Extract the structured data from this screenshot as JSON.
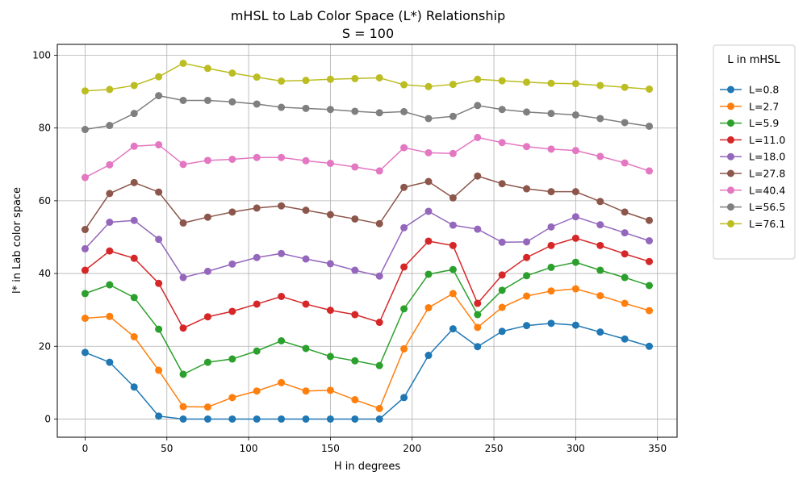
{
  "chart_data": {
    "type": "line",
    "title": "mHSL to Lab Color Space (L*) Relationship",
    "subtitle": "S = 100",
    "xlabel": "H in degrees",
    "ylabel": "l* in Lab color space",
    "xlim": [
      -17,
      362
    ],
    "ylim": [
      -5,
      103
    ],
    "x_ticks": [
      0,
      50,
      100,
      150,
      200,
      250,
      300,
      350
    ],
    "y_ticks": [
      0,
      20,
      40,
      60,
      80,
      100
    ],
    "grid": true,
    "legend_title": "L in mHSL",
    "legend_position": "outside-right",
    "x": [
      0,
      15,
      30,
      45,
      60,
      75,
      90,
      105,
      120,
      135,
      150,
      165,
      180,
      195,
      210,
      225,
      240,
      255,
      270,
      285,
      300,
      315,
      330,
      345
    ],
    "series": [
      {
        "name": "L=0.8",
        "color": "#1f77b4",
        "values": [
          18.3,
          15.6,
          8.8,
          0.8,
          0,
          0,
          0,
          0,
          0,
          0,
          0,
          0,
          0,
          5.9,
          17.5,
          24.8,
          19.9,
          24.1,
          25.7,
          26.3,
          25.8,
          23.9,
          22.0,
          20.0
        ]
      },
      {
        "name": "L=2.7",
        "color": "#ff7f0e",
        "values": [
          27.7,
          28.2,
          22.6,
          13.4,
          3.4,
          3.3,
          5.9,
          7.7,
          10.0,
          7.7,
          7.9,
          5.3,
          2.9,
          19.3,
          30.6,
          34.5,
          25.2,
          30.7,
          33.8,
          35.2,
          35.8,
          33.9,
          31.8,
          29.8
        ]
      },
      {
        "name": "L=5.9",
        "color": "#2ca02c",
        "values": [
          34.5,
          36.9,
          33.4,
          24.7,
          12.3,
          15.6,
          16.5,
          18.7,
          21.5,
          19.4,
          17.2,
          16.0,
          14.7,
          30.3,
          39.8,
          41.1,
          28.7,
          35.4,
          39.4,
          41.7,
          43.1,
          40.9,
          38.9,
          36.7
        ]
      },
      {
        "name": "L=11.0",
        "color": "#d62728",
        "values": [
          40.9,
          46.2,
          44.2,
          37.3,
          25.0,
          28.1,
          29.6,
          31.6,
          33.7,
          31.6,
          29.9,
          28.7,
          26.6,
          41.8,
          48.9,
          47.7,
          31.8,
          39.6,
          44.4,
          47.7,
          49.7,
          47.7,
          45.4,
          43.3
        ]
      },
      {
        "name": "L=18.0",
        "color": "#9467bd",
        "values": [
          46.8,
          54.1,
          54.6,
          49.4,
          38.9,
          40.6,
          42.6,
          44.4,
          45.5,
          44.0,
          42.7,
          40.9,
          39.3,
          52.6,
          57.1,
          53.3,
          52.2,
          48.6,
          48.7,
          52.8,
          55.6,
          53.4,
          51.2,
          49.0
        ]
      },
      {
        "name": "L=27.8",
        "color": "#8c564b",
        "values": [
          52.1,
          62.0,
          65.0,
          62.4,
          53.9,
          55.5,
          56.9,
          58.0,
          58.6,
          57.4,
          56.2,
          55.0,
          53.7,
          63.7,
          65.3,
          60.8,
          66.8,
          64.7,
          63.3,
          62.5,
          62.5,
          59.8,
          56.9,
          54.6
        ]
      },
      {
        "name": "L=40.4",
        "color": "#e377c2",
        "values": [
          66.4,
          69.9,
          75.0,
          75.4,
          70.0,
          71.1,
          71.4,
          71.9,
          71.9,
          71.0,
          70.3,
          69.3,
          68.2,
          74.6,
          73.2,
          73.0,
          77.4,
          76.0,
          74.9,
          74.2,
          73.8,
          72.2,
          70.4,
          68.2
        ]
      },
      {
        "name": "L=56.5",
        "color": "#7f7f7f",
        "values": [
          79.6,
          80.7,
          84.0,
          88.9,
          87.6,
          87.6,
          87.2,
          86.6,
          85.7,
          85.4,
          85.1,
          84.6,
          84.2,
          84.5,
          82.6,
          83.2,
          86.2,
          85.1,
          84.4,
          84.0,
          83.6,
          82.6,
          81.5,
          80.5
        ]
      },
      {
        "name": "L=76.1",
        "color": "#bcbd22",
        "values": [
          90.2,
          90.6,
          91.7,
          94.1,
          97.8,
          96.4,
          95.1,
          94.0,
          92.9,
          93.1,
          93.4,
          93.6,
          93.8,
          91.9,
          91.4,
          92.0,
          93.4,
          93.0,
          92.6,
          92.3,
          92.2,
          91.7,
          91.2,
          90.7
        ]
      }
    ]
  }
}
